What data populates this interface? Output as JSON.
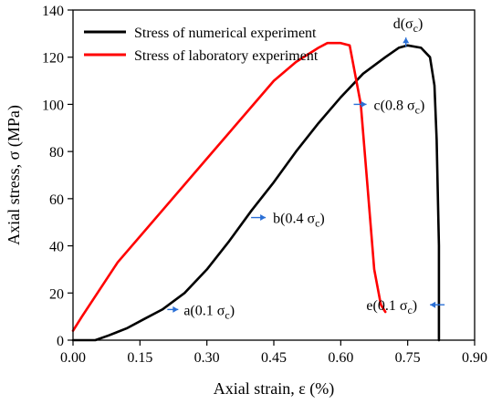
{
  "chart_data": {
    "type": "line",
    "xlabel": "Axial strain, ε (%)",
    "ylabel": "Axial stress, σ (MPa)",
    "xlim": [
      0,
      0.9
    ],
    "ylim": [
      0,
      140
    ],
    "xticks": [
      "0.00",
      "0.15",
      "0.30",
      "0.45",
      "0.60",
      "0.75",
      "0.90"
    ],
    "yticks": [
      "0",
      "20",
      "40",
      "60",
      "80",
      "100",
      "120",
      "140"
    ],
    "legend_position": "top-left",
    "series": [
      {
        "name": "Stress of numerical experiment",
        "color": "#000000",
        "x": [
          0.0,
          0.05,
          0.08,
          0.12,
          0.16,
          0.2,
          0.25,
          0.3,
          0.35,
          0.4,
          0.45,
          0.5,
          0.55,
          0.6,
          0.65,
          0.7,
          0.73,
          0.75,
          0.78,
          0.8,
          0.81,
          0.815,
          0.82,
          0.82
        ],
        "y": [
          0,
          0,
          2,
          5,
          9,
          13,
          20,
          30,
          42,
          55,
          67,
          80,
          92,
          103,
          113,
          120,
          124,
          125,
          124,
          120,
          108,
          85,
          40,
          0
        ]
      },
      {
        "name": "Stress of laboratory experiment",
        "color": "#ff0000",
        "x": [
          0.0,
          0.02,
          0.1,
          0.2,
          0.3,
          0.4,
          0.45,
          0.5,
          0.55,
          0.57,
          0.6,
          0.62,
          0.63,
          0.645,
          0.66,
          0.675,
          0.69,
          0.7
        ],
        "y": [
          4,
          10,
          33,
          55,
          77,
          99,
          110,
          118,
          124,
          126,
          126,
          125,
          115,
          100,
          65,
          30,
          15,
          12
        ]
      }
    ],
    "annotations": [
      {
        "label": "a(0.1 σc)",
        "base": "a(0.1 σ",
        "sub": "c",
        "tail": ")",
        "x": 0.24,
        "y": 13
      },
      {
        "label": "b(0.4 σc)",
        "base": "b(0.4 σ",
        "sub": "c",
        "tail": ")",
        "x": 0.44,
        "y": 52
      },
      {
        "label": "c(0.8 σc)",
        "base": "c(0.8 σ",
        "sub": "c",
        "tail": ")",
        "x": 0.67,
        "y": 100
      },
      {
        "label": "d(σc)",
        "base": "d(σ",
        "sub": "c",
        "tail": ")",
        "x": 0.746,
        "y": 126
      },
      {
        "label": "e(0.1 σc)",
        "base": "e(0.1 σ",
        "sub": "c",
        "tail": ")",
        "x": 0.8,
        "y": 15
      }
    ]
  }
}
